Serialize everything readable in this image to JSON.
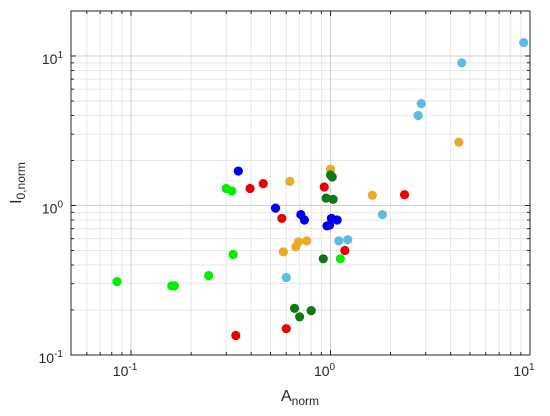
{
  "chart_data": {
    "type": "scatter",
    "xlabel": {
      "main": "A",
      "sub": "norm"
    },
    "ylabel": {
      "main": "I",
      "sub": "0,norm"
    },
    "x_scale": "log",
    "y_scale": "log",
    "xlim": [
      0.05,
      10
    ],
    "ylim": [
      0.1,
      20
    ],
    "x_ticks": [
      {
        "base": "10",
        "exp": "-1",
        "value": 0.1
      },
      {
        "base": "10",
        "exp": "0",
        "value": 1
      },
      {
        "base": "10",
        "exp": "1",
        "value": 10
      }
    ],
    "y_ticks": [
      {
        "base": "10",
        "exp": "-1",
        "value": 0.1
      },
      {
        "base": "10",
        "exp": "0",
        "value": 1
      },
      {
        "base": "10",
        "exp": "1",
        "value": 10
      }
    ],
    "grid": true,
    "series": [
      {
        "color": "#00ee00",
        "points": [
          [
            0.085,
            0.31
          ],
          [
            0.16,
            0.29
          ],
          [
            0.165,
            0.29
          ],
          [
            0.245,
            0.34
          ],
          [
            0.3,
            1.3
          ],
          [
            0.32,
            1.25
          ],
          [
            0.325,
            0.47
          ],
          [
            1.12,
            0.44
          ]
        ]
      },
      {
        "color": "#ee0000",
        "points": [
          [
            0.335,
            0.135
          ],
          [
            0.395,
            1.3
          ],
          [
            0.46,
            1.4
          ],
          [
            0.57,
            0.82
          ],
          [
            0.6,
            0.15
          ],
          [
            0.93,
            1.33
          ],
          [
            1.18,
            0.5
          ],
          [
            2.35,
            1.18
          ]
        ]
      },
      {
        "color": "#0000ee",
        "points": [
          [
            0.345,
            1.7
          ],
          [
            0.53,
            0.96
          ],
          [
            0.71,
            0.87
          ],
          [
            0.74,
            0.8
          ],
          [
            0.96,
            0.73
          ],
          [
            0.99,
            0.74
          ],
          [
            1.01,
            0.82
          ],
          [
            1.08,
            0.8
          ]
        ]
      },
      {
        "color": "#eaaa28",
        "points": [
          [
            0.58,
            0.49
          ],
          [
            0.625,
            1.45
          ],
          [
            0.67,
            0.53
          ],
          [
            0.69,
            0.57
          ],
          [
            0.76,
            0.58
          ],
          [
            1.0,
            1.75
          ],
          [
            1.62,
            1.17
          ],
          [
            4.4,
            2.65
          ]
        ]
      },
      {
        "color": "#5bbde6",
        "points": [
          [
            0.6,
            0.33
          ],
          [
            1.1,
            0.58
          ],
          [
            1.22,
            0.59
          ],
          [
            1.82,
            0.87
          ],
          [
            2.75,
            4.0
          ],
          [
            2.85,
            4.8
          ],
          [
            4.55,
            9.0
          ],
          [
            9.3,
            12.3
          ]
        ]
      },
      {
        "color": "#117711",
        "points": [
          [
            0.66,
            0.205
          ],
          [
            0.7,
            0.18
          ],
          [
            0.8,
            0.198
          ],
          [
            0.92,
            0.44
          ],
          [
            0.95,
            1.12
          ],
          [
            1.0,
            1.6
          ],
          [
            1.02,
            1.55
          ],
          [
            1.03,
            1.1
          ]
        ]
      }
    ]
  }
}
